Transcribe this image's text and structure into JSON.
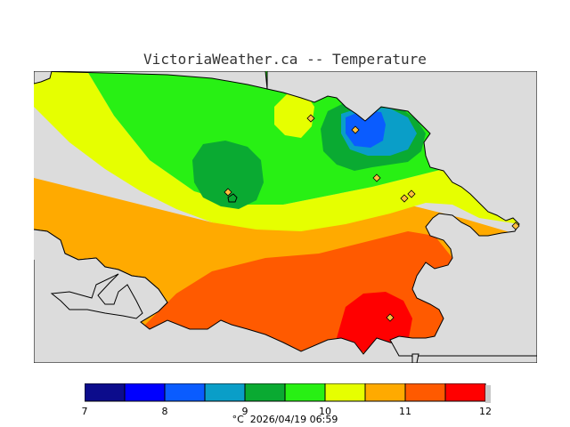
{
  "title": "VictoriaWeather.ca -- Temperature",
  "legend": {
    "unit": "°C",
    "timestamp": "2026/04/19 06:59",
    "ticks": [
      "7",
      "8",
      "9",
      "10",
      "11",
      "12"
    ],
    "bands": [
      {
        "from": 7.0,
        "to": 7.5,
        "color": "#0c0c8c"
      },
      {
        "from": 7.5,
        "to": 8.0,
        "color": "#0000ff"
      },
      {
        "from": 8.0,
        "to": 8.5,
        "color": "#0a5cff"
      },
      {
        "from": 8.5,
        "to": 9.0,
        "color": "#0a9ec8"
      },
      {
        "from": 9.0,
        "to": 9.5,
        "color": "#0aaa32"
      },
      {
        "from": 9.5,
        "to": 10.0,
        "color": "#28f014"
      },
      {
        "from": 10.0,
        "to": 10.5,
        "color": "#e6ff00"
      },
      {
        "from": 10.5,
        "to": 11.0,
        "color": "#ffaa00"
      },
      {
        "from": 11.0,
        "to": 11.5,
        "color": "#ff5a00"
      },
      {
        "from": 11.5,
        "to": 12.0,
        "color": "#ff0000"
      }
    ]
  },
  "map": {
    "land_color": "#dcdcdc",
    "station_color": "#ffc040"
  }
}
